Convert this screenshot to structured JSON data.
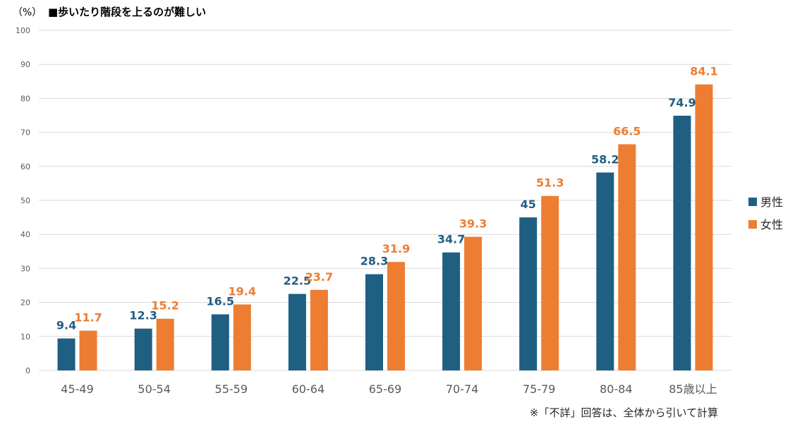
{
  "chart_data": {
    "type": "bar",
    "unit_label": "（%）",
    "title": "■歩いたり階段を上るのが難しい",
    "categories": [
      "45-49",
      "50-54",
      "55-59",
      "60-64",
      "65-69",
      "70-74",
      "75-79",
      "80-84",
      "85歳以上"
    ],
    "series": [
      {
        "name": "男性",
        "color": "#1f5f82",
        "values": [
          9.4,
          12.3,
          16.5,
          22.5,
          28.3,
          34.7,
          45,
          58.2,
          74.9
        ]
      },
      {
        "name": "女性",
        "color": "#ed7d31",
        "values": [
          11.7,
          15.2,
          19.4,
          23.7,
          31.9,
          39.3,
          51.3,
          66.5,
          84.1
        ]
      }
    ],
    "ylim": [
      0,
      100
    ],
    "yticks": [
      0,
      10,
      20,
      30,
      40,
      50,
      60,
      70,
      80,
      90,
      100
    ],
    "grid": true,
    "legend_position": "right",
    "note": "※「不詳」回答は、全体から引いて計算"
  }
}
